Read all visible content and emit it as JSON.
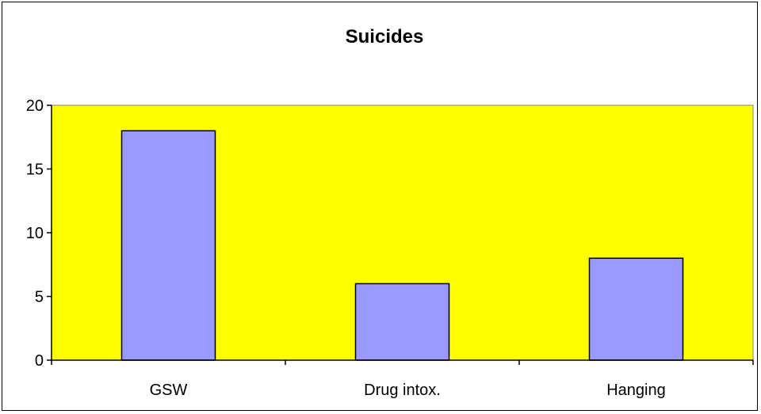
{
  "chart_data": {
    "type": "bar",
    "title": "Suicides",
    "categories": [
      "GSW",
      "Drug intox.",
      "Hanging"
    ],
    "values": [
      18,
      6,
      8
    ],
    "ylim": [
      0,
      20
    ],
    "yticks": [
      0,
      5,
      10,
      15,
      20
    ],
    "xlabel": "",
    "ylabel": "",
    "grid": false,
    "legend": "none",
    "colors": {
      "plot_background": "#ffff00",
      "bar_fill": "#9999ff",
      "bar_stroke": "#000000",
      "axis": "#000000"
    }
  }
}
